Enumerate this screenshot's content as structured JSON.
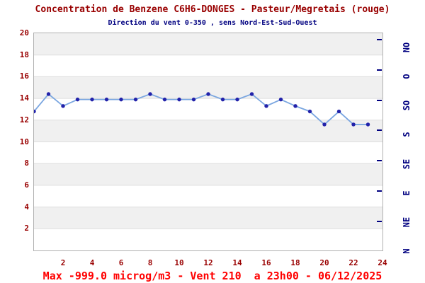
{
  "colors": {
    "title_red": "#990000",
    "axis_label_red": "#990000",
    "footer_red": "#ff0000",
    "navy": "#000080",
    "line_blue": "#7aa6e0",
    "marker_blue": "#2222aa",
    "band_gray": "#f0f0f0",
    "band_white": "#ffffff",
    "border_gray": "#b0b0b0",
    "gridline_gray": "#dedede"
  },
  "chart_data": {
    "type": "line",
    "title": "Concentration de Benzene C6H6-DONGES - Pasteur/Megretais (rouge)",
    "subtitle": "Direction du vent 0-350 , sens Nord-Est-Sud-Ouest",
    "footer": "Max -999.0 microg/m3 - Vent 210  a 23h00 - 06/12/2025",
    "series_name": "Benzene C6H6 DONGES Pasteur/Megretais",
    "x": [
      0,
      1,
      2,
      3,
      4,
      5,
      6,
      7,
      8,
      9,
      10,
      11,
      12,
      13,
      14,
      15,
      16,
      17,
      18,
      19,
      20,
      21,
      22,
      23
    ],
    "values": [
      12.8,
      14.4,
      13.3,
      13.9,
      13.9,
      13.9,
      13.9,
      13.9,
      14.4,
      13.9,
      13.9,
      13.9,
      14.4,
      13.9,
      13.9,
      14.4,
      13.3,
      13.9,
      13.3,
      12.8,
      11.6,
      12.8,
      11.6,
      11.6
    ],
    "xlim": [
      0,
      24
    ],
    "ylim": [
      0,
      20
    ],
    "x_ticks": [
      2,
      4,
      6,
      8,
      10,
      12,
      14,
      16,
      18,
      20,
      22,
      24
    ],
    "y_ticks": [
      2,
      4,
      6,
      8,
      10,
      12,
      14,
      16,
      18,
      20
    ],
    "right_axis_labels_top_to_bottom": [
      "NO",
      "O",
      "SO",
      "S",
      "SE",
      "E",
      "NE",
      "N"
    ],
    "grid": "horizontal-bands-every-2-units",
    "legend_position": "none",
    "xlabel": "",
    "ylabel": ""
  }
}
